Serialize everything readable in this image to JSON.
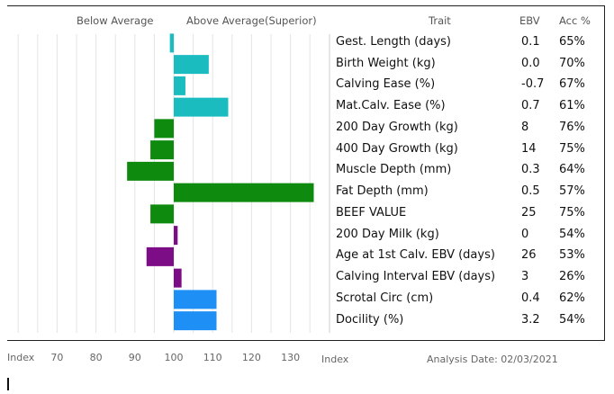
{
  "legend": {
    "below": "Below Average",
    "above": "Above Average(Superior)"
  },
  "headers": {
    "trait": "Trait",
    "ebv": "EBV",
    "acc": "Acc %"
  },
  "footer": {
    "index_left": "Index",
    "index_right": "Index",
    "analysis": "Analysis Date: 02/03/2021"
  },
  "colors": {
    "teal": "#1bbcc0",
    "green": "#0e8a0e",
    "purple": "#7d0d86",
    "blue": "#1e90f5"
  },
  "chart_data": {
    "type": "bar",
    "orientation": "horizontal",
    "xlabel": "Index",
    "xlim": [
      60,
      135
    ],
    "x_ticks": [
      70,
      80,
      90,
      100,
      110,
      120,
      130
    ],
    "baseline": 100,
    "grid": true,
    "rows": [
      {
        "trait": "Gest. Length (days)",
        "ebv": "0.1",
        "acc": "65%",
        "index": 99,
        "color": "teal"
      },
      {
        "trait": "Birth Weight (kg)",
        "ebv": "0.0",
        "acc": "70%",
        "index": 109,
        "color": "teal"
      },
      {
        "trait": "Calving Ease (%)",
        "ebv": "-0.7",
        "acc": "67%",
        "index": 103,
        "color": "teal"
      },
      {
        "trait": "Mat.Calv. Ease (%)",
        "ebv": "0.7",
        "acc": "61%",
        "index": 114,
        "color": "teal"
      },
      {
        "trait": "200 Day Growth (kg)",
        "ebv": "8",
        "acc": "76%",
        "index": 95,
        "color": "green"
      },
      {
        "trait": "400 Day Growth (kg)",
        "ebv": "14",
        "acc": "75%",
        "index": 94,
        "color": "green"
      },
      {
        "trait": "Muscle Depth (mm)",
        "ebv": "0.3",
        "acc": "64%",
        "index": 88,
        "color": "green"
      },
      {
        "trait": "Fat Depth (mm)",
        "ebv": "0.5",
        "acc": "57%",
        "index": 136,
        "color": "green"
      },
      {
        "trait": "BEEF VALUE",
        "ebv": "25",
        "acc": "75%",
        "index": 94,
        "color": "green"
      },
      {
        "trait": "200 Day Milk (kg)",
        "ebv": "0",
        "acc": "54%",
        "index": 101,
        "color": "purple"
      },
      {
        "trait": "Age at 1st Calv. EBV (days)",
        "ebv": "26",
        "acc": "53%",
        "index": 93,
        "color": "purple"
      },
      {
        "trait": "Calving Interval EBV (days)",
        "ebv": "3",
        "acc": "26%",
        "index": 102,
        "color": "purple"
      },
      {
        "trait": "Scrotal Circ (cm)",
        "ebv": "0.4",
        "acc": "62%",
        "index": 111,
        "color": "blue"
      },
      {
        "trait": "Docility (%)",
        "ebv": "3.2",
        "acc": "54%",
        "index": 111,
        "color": "blue"
      }
    ]
  }
}
